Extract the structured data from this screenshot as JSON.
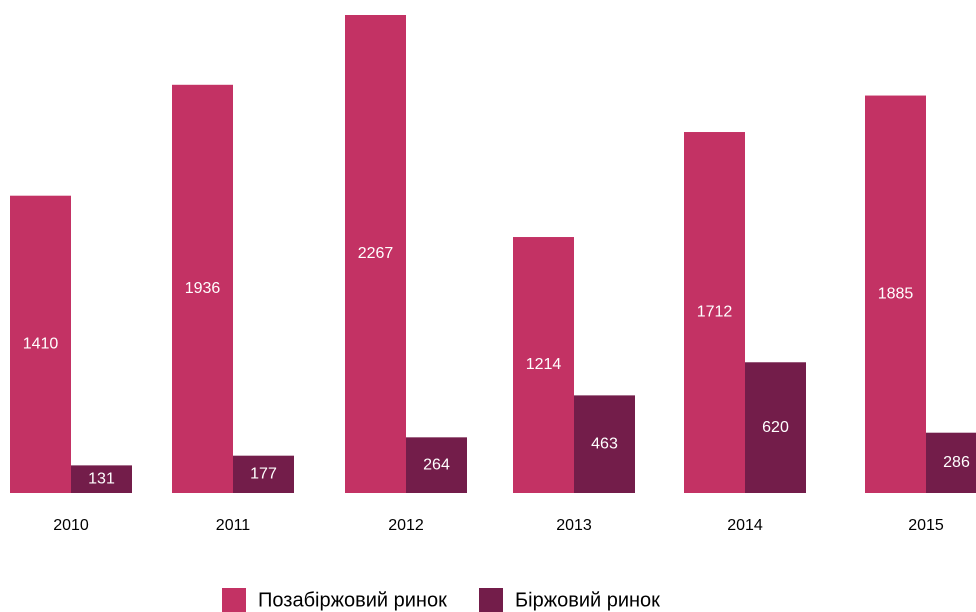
{
  "chart_data": {
    "type": "bar",
    "categories": [
      "2010",
      "2011",
      "2012",
      "2013",
      "2014",
      "2015"
    ],
    "series": [
      {
        "name": "Позабіржовий ринок",
        "color": "#c33264",
        "values": [
          1410,
          1936,
          2267,
          1214,
          1712,
          1885
        ]
      },
      {
        "name": "Біржовий ринок",
        "color": "#731d4a",
        "values": [
          131,
          177,
          264,
          463,
          620,
          286
        ]
      }
    ],
    "legend": "bottom"
  }
}
